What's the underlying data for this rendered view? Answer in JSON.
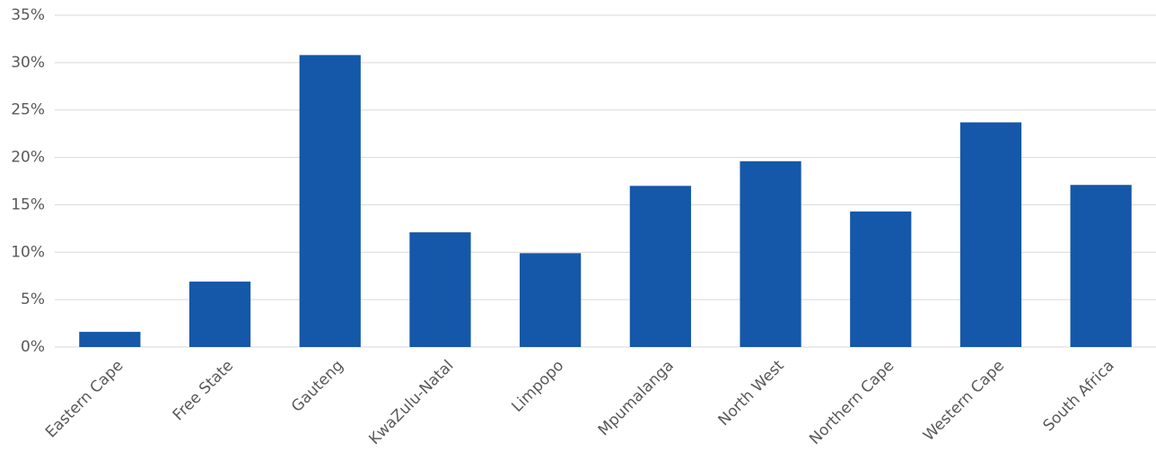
{
  "chart_data": {
    "type": "bar",
    "categories": [
      "Eastern Cape",
      "Free State",
      "Gauteng",
      "KwaZulu-Natal",
      "Limpopo",
      "Mpumalanga",
      "North West",
      "Northern Cape",
      "Western Cape",
      "South Africa"
    ],
    "values": [
      1.6,
      6.9,
      30.8,
      12.1,
      9.9,
      17.0,
      19.6,
      14.3,
      23.7,
      17.1
    ],
    "color": "#1557a8",
    "ylim": [
      0,
      35
    ],
    "yticks": [
      {
        "value": 0,
        "label": "0%"
      },
      {
        "value": 5,
        "label": "5%"
      },
      {
        "value": 10,
        "label": "10%"
      },
      {
        "value": 15,
        "label": "15%"
      },
      {
        "value": 20,
        "label": "20%"
      },
      {
        "value": 25,
        "label": "25%"
      },
      {
        "value": 30,
        "label": "30%"
      },
      {
        "value": 35,
        "label": "35%"
      }
    ],
    "grid": true
  }
}
